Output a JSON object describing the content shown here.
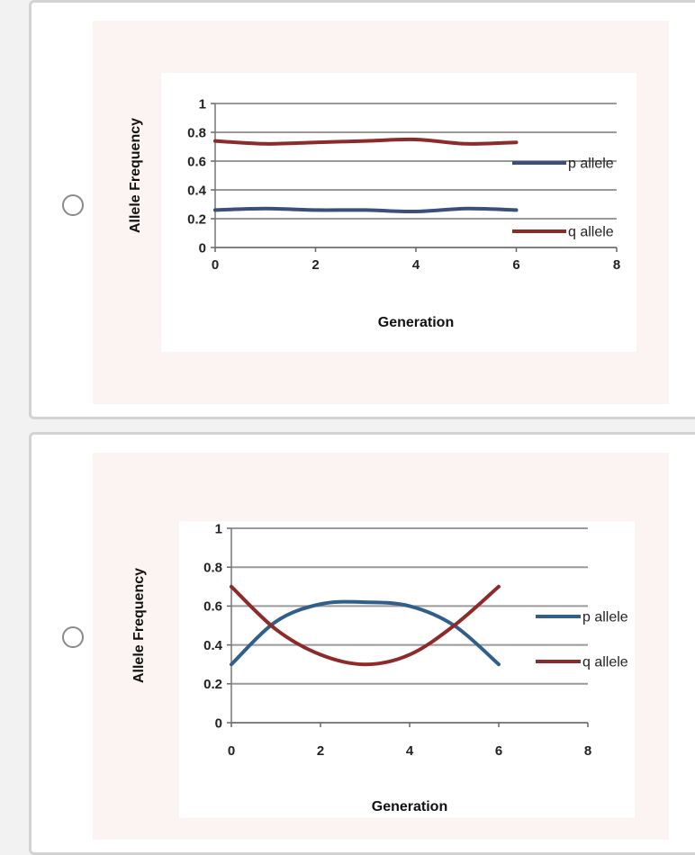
{
  "options": [
    {
      "chart_data": {
        "type": "line",
        "xlabel": "Generation",
        "ylabel": "Allele Frequency",
        "xlim": [
          0,
          8
        ],
        "ylim": [
          0,
          1
        ],
        "xticks": [
          "0",
          "2",
          "4",
          "6",
          "8"
        ],
        "yticks": [
          "0",
          "0.2",
          "0.4",
          "0.6",
          "0.8",
          "1"
        ],
        "grid": true,
        "legend": "right",
        "series": [
          {
            "name": "p allele",
            "color": "#3b4f7a",
            "x": [
              0,
              1,
              2,
              3,
              4,
              5,
              6
            ],
            "y": [
              0.26,
              0.27,
              0.26,
              0.26,
              0.25,
              0.27,
              0.26
            ]
          },
          {
            "name": "q allele",
            "color": "#8e2a2a",
            "x": [
              0,
              1,
              2,
              3,
              4,
              5,
              6
            ],
            "y": [
              0.74,
              0.72,
              0.73,
              0.74,
              0.75,
              0.72,
              0.73
            ]
          }
        ]
      }
    },
    {
      "chart_data": {
        "type": "line",
        "xlabel": "Generation",
        "ylabel": "Allele Frequency",
        "xlim": [
          0,
          8
        ],
        "ylim": [
          0,
          1
        ],
        "xticks": [
          "0",
          "2",
          "4",
          "6",
          "8"
        ],
        "yticks": [
          "0",
          "0.2",
          "0.4",
          "0.6",
          "0.8",
          "1"
        ],
        "grid": true,
        "legend": "right",
        "series": [
          {
            "name": "p allele",
            "color": "#2f5f8a",
            "x": [
              0,
              1,
              2,
              3,
              4,
              5,
              6
            ],
            "y": [
              0.3,
              0.52,
              0.61,
              0.62,
              0.6,
              0.5,
              0.3
            ]
          },
          {
            "name": "q allele",
            "color": "#8e2a2a",
            "x": [
              0,
              1,
              2,
              3,
              4,
              5,
              6
            ],
            "y": [
              0.7,
              0.48,
              0.35,
              0.3,
              0.35,
              0.5,
              0.7
            ]
          }
        ]
      }
    }
  ]
}
